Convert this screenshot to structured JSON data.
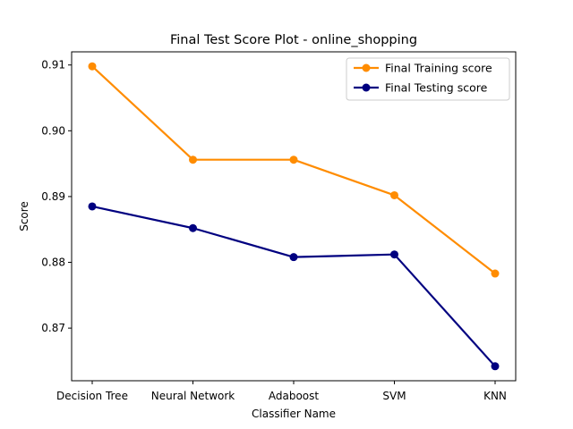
{
  "chart_data": {
    "type": "line",
    "title": "Final Test Score Plot - online_shopping",
    "xlabel": "Classifier Name",
    "ylabel": "Score",
    "categories": [
      "Decision Tree",
      "Neural Network",
      "Adaboost",
      "SVM",
      "KNN"
    ],
    "ylim": [
      0.862,
      0.912
    ],
    "yticks": [
      0.87,
      0.88,
      0.89,
      0.9,
      0.91
    ],
    "ytick_labels": [
      "0.87",
      "0.88",
      "0.89",
      "0.90",
      "0.91"
    ],
    "grid": false,
    "legend_position": "top-right",
    "series": [
      {
        "name": "Final Training score",
        "color": "#ff8c00",
        "values": [
          0.9098,
          0.8956,
          0.8956,
          0.8902,
          0.8783
        ]
      },
      {
        "name": "Final Testing score",
        "color": "#000080",
        "values": [
          0.8885,
          0.8852,
          0.8808,
          0.8812,
          0.8642
        ]
      }
    ]
  }
}
